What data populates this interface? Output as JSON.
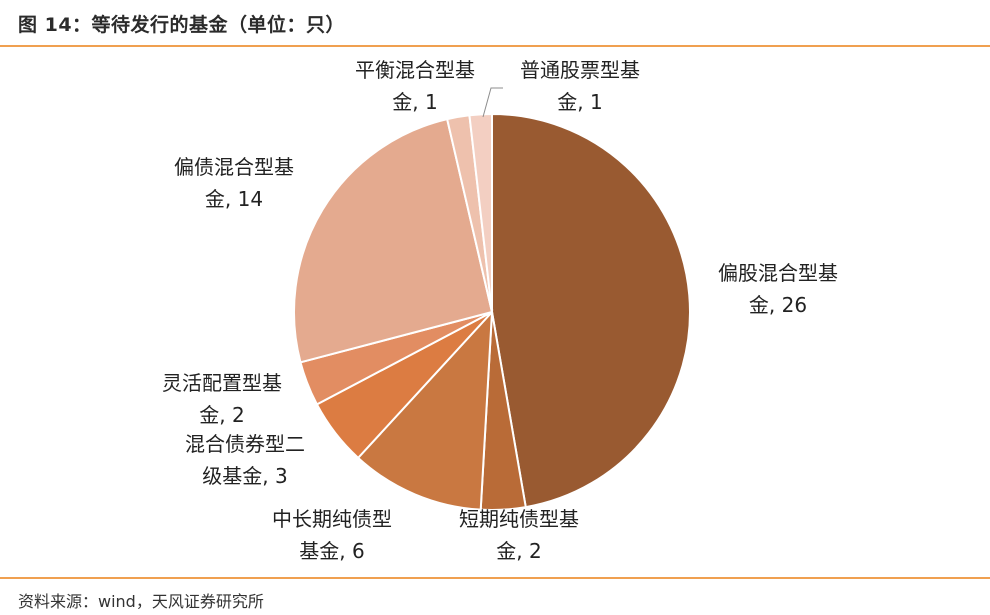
{
  "title": "图 14：等待发行的基金（单位：只）",
  "source": "资料来源：wind，天风证券研究所",
  "colors": {
    "rule": "#f0a050",
    "leader": "#8c8c8c"
  },
  "chart_data": {
    "type": "pie",
    "start_angle_deg": 90,
    "direction": "clockwise",
    "legend": "none",
    "slices": [
      {
        "label": "偏股混合型基金",
        "value": 26,
        "color": "#995a31",
        "text_lines": [
          "偏股混合型基",
          "金, 26"
        ]
      },
      {
        "label": "短期纯债型基金",
        "value": 2,
        "color": "#b96b37",
        "text_lines": [
          "短期纯债型基",
          "金, 2"
        ]
      },
      {
        "label": "中长期纯债型基金",
        "value": 6,
        "color": "#c97841",
        "text_lines": [
          "中长期纯债型",
          "基金, 6"
        ]
      },
      {
        "label": "混合债券型二级基金",
        "value": 3,
        "color": "#dc7c42",
        "text_lines": [
          "混合债券型二",
          "级基金, 3"
        ]
      },
      {
        "label": "灵活配置型基金",
        "value": 2,
        "color": "#e28d62",
        "text_lines": [
          "灵活配置型基",
          "金, 2"
        ]
      },
      {
        "label": "偏债混合型基金",
        "value": 14,
        "color": "#e4aa8f",
        "text_lines": [
          "偏债混合型基",
          "金, 14"
        ]
      },
      {
        "label": "平衡混合型基金",
        "value": 1,
        "color": "#eec1ad",
        "text_lines": [
          "平衡混合型基",
          "金, 1"
        ]
      },
      {
        "label": "普通股票型基金",
        "value": 1,
        "color": "#f3cfc2",
        "text_lines": [
          "普通股票型基",
          "金, 1"
        ]
      }
    ]
  }
}
